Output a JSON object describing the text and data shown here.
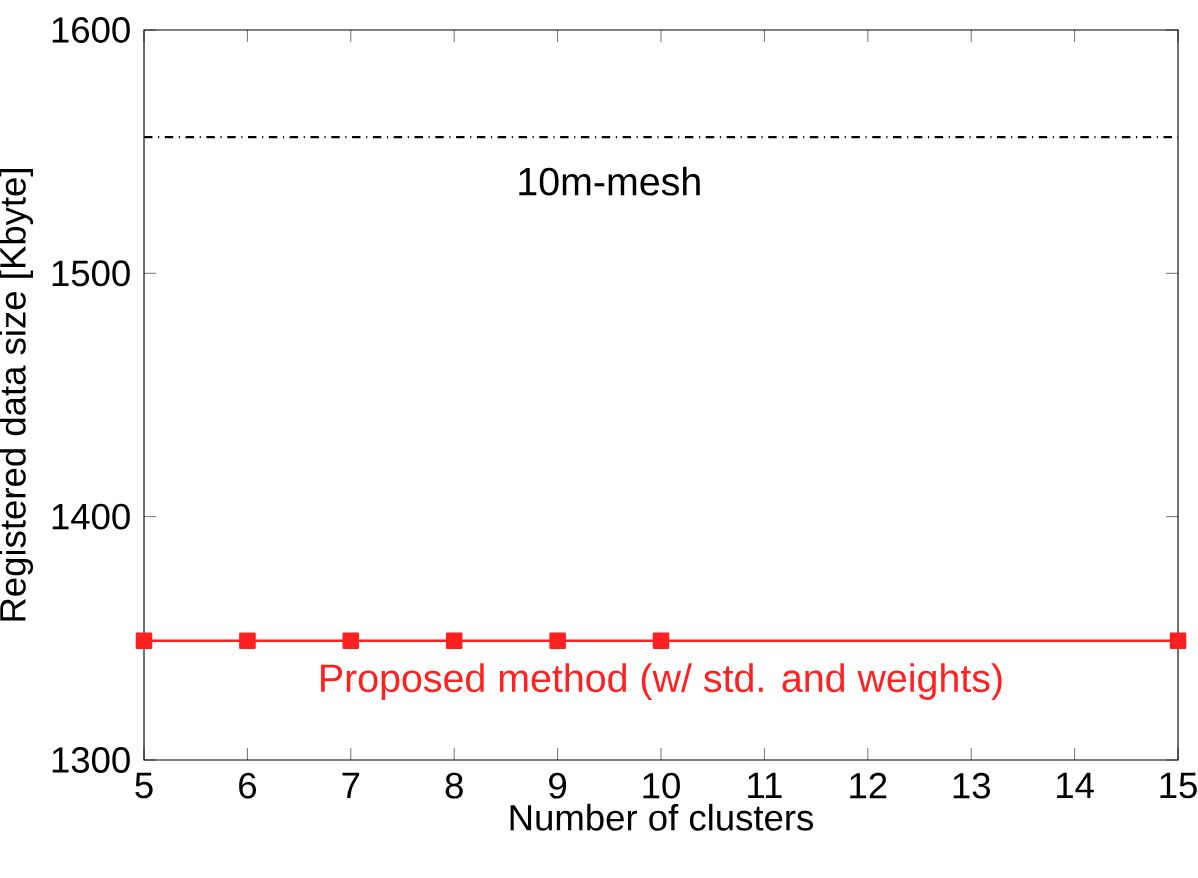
{
  "chart_data": {
    "type": "line",
    "xlabel": "Number of clusters",
    "ylabel": "Registered data size [Kbyte]",
    "x": [
      5,
      6,
      7,
      8,
      9,
      10,
      15
    ],
    "series": [
      {
        "name": "Proposed method (w/ std. and weights)",
        "color": "#ff2020",
        "values": [
          1349,
          1349,
          1349,
          1349,
          1349,
          1349,
          1349
        ]
      }
    ],
    "marker": "square",
    "line_style": "solid",
    "grid": false,
    "legend": false,
    "xlim": [
      5,
      15
    ],
    "xticks": [
      5,
      6,
      7,
      8,
      9,
      10,
      11,
      12,
      13,
      14,
      15
    ],
    "ylim": [
      1300,
      1600
    ],
    "yticks": [
      1300,
      1400,
      1500,
      1600
    ],
    "ref_lines": [
      {
        "axis": "y",
        "value": 1556,
        "label": "10m-mesh",
        "color": "#000000",
        "line_style": "dashdot"
      }
    ]
  }
}
